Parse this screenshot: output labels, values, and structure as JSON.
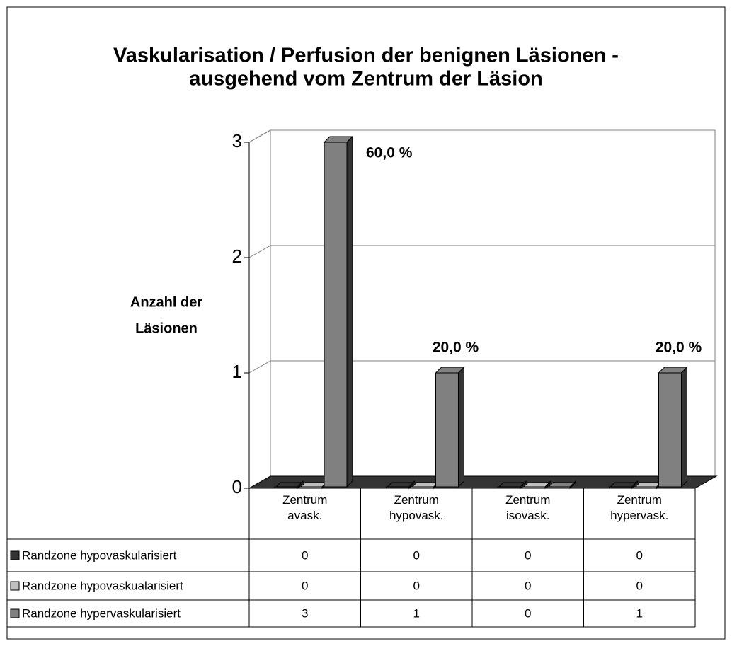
{
  "chart_data": {
    "type": "bar3d",
    "title": [
      "Vaskularisation / Perfusion der benignen Läsionen -",
      "ausgehend vom Zentrum der Läsion"
    ],
    "y_label": [
      "Anzahl der",
      "Läsionen"
    ],
    "categories": [
      "Zentrum avask.",
      "Zentrum hypovask.",
      "Zentrum isovask.",
      "Zentrum hypervask."
    ],
    "series": [
      {
        "name": "Randzone hypovaskularisiert",
        "color": "#333333",
        "values": [
          0,
          0,
          0,
          0
        ]
      },
      {
        "name": "Randzone hypovaskualarisiert",
        "color": "#c0c0c0",
        "values": [
          0,
          0,
          0,
          0
        ]
      },
      {
        "name": "Randzone hypervaskularisiert",
        "color": "#808080",
        "values": [
          3,
          1,
          0,
          1
        ],
        "value_labels": [
          "60,0 %",
          "20,0 %",
          null,
          "20,0 %"
        ]
      }
    ],
    "ylim": [
      0,
      3
    ],
    "yticks": [
      0,
      1,
      2,
      3
    ],
    "grid": true,
    "data_table": true
  }
}
